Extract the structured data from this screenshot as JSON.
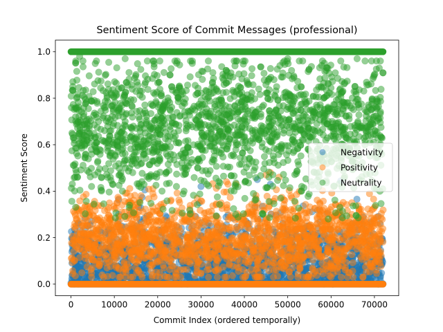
{
  "chart_data": {
    "type": "scatter",
    "title": "Sentiment Score of Commit Messages (professional)",
    "xlabel": "Commit Index (ordered temporally)",
    "ylabel": "Sentiment Score",
    "xlim": [
      -3600,
      75600
    ],
    "ylim": [
      -0.05,
      1.05
    ],
    "xticks": [
      0,
      10000,
      20000,
      30000,
      40000,
      50000,
      60000,
      70000
    ],
    "xtick_labels": [
      "0",
      "10000",
      "20000",
      "30000",
      "40000",
      "50000",
      "60000",
      "70000"
    ],
    "yticks": [
      0.0,
      0.2,
      0.4,
      0.6,
      0.8,
      1.0
    ],
    "ytick_labels": [
      "0.0",
      "0.2",
      "0.4",
      "0.6",
      "0.8",
      "1.0"
    ],
    "grid": false,
    "legend_position": "center-right",
    "n_points": 72000,
    "series": [
      {
        "name": "Negativity",
        "color": "#1f77b4",
        "alpha": 0.5,
        "baseline": 0.0,
        "typical_range": [
          0.0,
          0.3
        ],
        "max_observed": 0.47,
        "notable_points": [
          [
            43000,
            0.45
          ],
          [
            54000,
            0.06
          ],
          [
            46000,
            0.43
          ],
          [
            30000,
            0.42
          ]
        ]
      },
      {
        "name": "Positivity",
        "color": "#ff7f0e",
        "alpha": 0.5,
        "baseline": 0.0,
        "typical_range": [
          0.05,
          0.42
        ],
        "max_observed": 0.5,
        "notable_points": [
          [
            46000,
            0.48
          ],
          [
            48000,
            0.46
          ],
          [
            45000,
            0.47
          ],
          [
            64000,
            0.05
          ]
        ]
      },
      {
        "name": "Neutrality",
        "color": "#2ca02c",
        "alpha": 0.5,
        "baseline": 1.0,
        "typical_range": [
          0.45,
          0.92
        ],
        "min_observed": 0.0,
        "notable_points": [
          [
            2000,
            0.98
          ],
          [
            12500,
            0.97
          ],
          [
            20500,
            0.96
          ],
          [
            50000,
            0.97
          ],
          [
            66000,
            0.97
          ],
          [
            38000,
            0.3
          ],
          [
            70500,
            0.41
          ]
        ]
      }
    ]
  }
}
